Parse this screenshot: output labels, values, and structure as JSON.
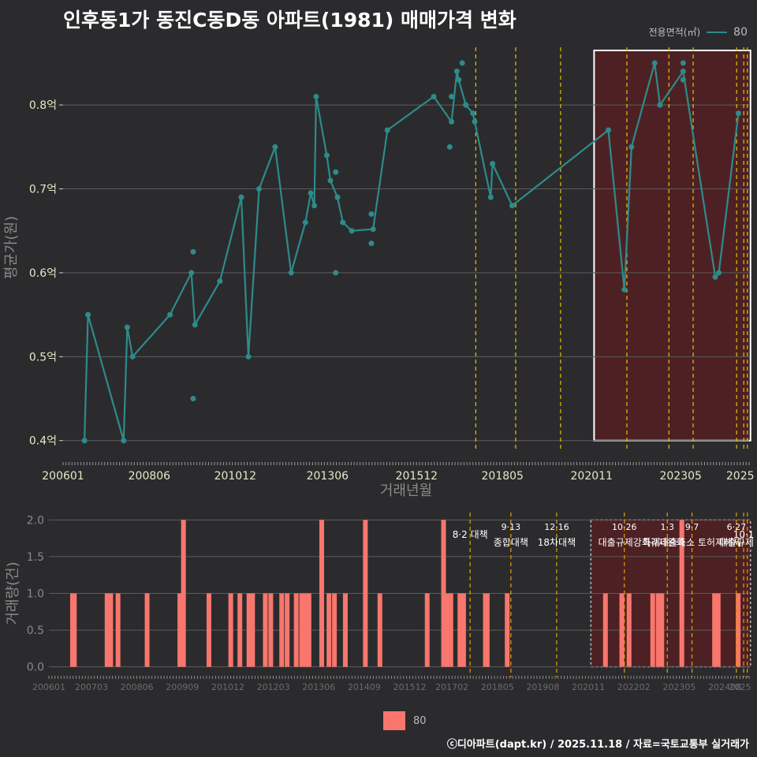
{
  "title": "인후동1가 동진C동D동 아파트(1981) 매매가격 변화",
  "credit": "ⓒ디아파트(dapt.kr) / 2025.11.18 / 자료=국토교통부 실거래가",
  "legend": {
    "title": "전용면적(㎡)",
    "series": "80"
  },
  "colors": {
    "background": "#2b2b2d",
    "line": "#2e8b8b",
    "bar": "#f8766d",
    "policy": "#e6c300",
    "highlight": "#5a1f20"
  },
  "price_chart": {
    "ylabel": "평균가(원)",
    "xlabel": "거래년월",
    "y_ticks": [
      {
        "value": 0.4,
        "label": "0.4억"
      },
      {
        "value": 0.5,
        "label": "0.5억"
      },
      {
        "value": 0.6,
        "label": "0.6억"
      },
      {
        "value": 0.7,
        "label": "0.7억"
      },
      {
        "value": 0.8,
        "label": "0.8억"
      }
    ],
    "x_ticks": [
      {
        "t": 2006.0,
        "label": "200601"
      },
      {
        "t": 2008.42,
        "label": "200806"
      },
      {
        "t": 2010.83,
        "label": "201012"
      },
      {
        "t": 2013.42,
        "label": "201306"
      },
      {
        "t": 2015.92,
        "label": "201512"
      },
      {
        "t": 2018.33,
        "label": "201805"
      },
      {
        "t": 2020.83,
        "label": "202011"
      },
      {
        "t": 2023.33,
        "label": "202305"
      },
      {
        "t": 2025.0,
        "label": "2025"
      }
    ]
  },
  "volume_chart": {
    "ylabel": "거래량(건)",
    "y_ticks": [
      {
        "value": 0,
        "label": "0.0"
      },
      {
        "value": 0.5,
        "label": "0.5"
      },
      {
        "value": 1.0,
        "label": "1.0"
      },
      {
        "value": 1.5,
        "label": "1.5"
      },
      {
        "value": 2.0,
        "label": "2.0"
      }
    ],
    "x_ticks": [
      {
        "t": 2006.0,
        "label": "200601"
      },
      {
        "t": 2007.17,
        "label": "200703"
      },
      {
        "t": 2008.42,
        "label": "200806"
      },
      {
        "t": 2009.67,
        "label": "200909"
      },
      {
        "t": 2010.92,
        "label": "201012"
      },
      {
        "t": 2012.17,
        "label": "201203"
      },
      {
        "t": 2013.42,
        "label": "201306"
      },
      {
        "t": 2014.67,
        "label": "201409"
      },
      {
        "t": 2015.92,
        "label": "201512"
      },
      {
        "t": 2017.08,
        "label": "201702"
      },
      {
        "t": 2018.33,
        "label": "201805"
      },
      {
        "t": 2019.58,
        "label": "201908"
      },
      {
        "t": 2020.83,
        "label": "202011"
      },
      {
        "t": 2022.08,
        "label": "202202"
      },
      {
        "t": 2023.33,
        "label": "202305"
      },
      {
        "t": 2024.58,
        "label": "202408"
      },
      {
        "t": 2025.0,
        "label": "2025"
      }
    ],
    "annotations": [
      {
        "t": 2017.58,
        "line1": "8·2 대책",
        "line2": ""
      },
      {
        "t": 2018.7,
        "line1": "9·13",
        "line2": "종합대책"
      },
      {
        "t": 2019.96,
        "line1": "12·16",
        "line2": "18차대책"
      },
      {
        "t": 2021.82,
        "line1": "10·26",
        "line2": "대출규제강화"
      },
      {
        "t": 2023.0,
        "line1": "1·3",
        "line2": "규제완화"
      },
      {
        "t": 2023.68,
        "line1": "9·7",
        "line2": "특례대출축소 토허제해제"
      },
      {
        "t": 2024.9,
        "line1": "6·27",
        "line2": "대출규제"
      },
      {
        "t": 2025.1,
        "line1": "10·1",
        "line2": ""
      }
    ]
  },
  "chart_data": {
    "type": "line",
    "title": "인후동1가 동진C동D동 아파트(1981) 매매가격 변화",
    "xlabel": "거래년월",
    "ylabel": "평균가(원)",
    "ylim": [
      0.4,
      0.86
    ],
    "xlim": [
      2006.0,
      2025.25
    ],
    "series": [
      {
        "name": "80",
        "x": [
          2006.6,
          2006.7,
          2007.7,
          2007.8,
          2007.95,
          2009.0,
          2009.6,
          2009.7,
          2010.4,
          2011.0,
          2011.2,
          2011.5,
          2011.95,
          2012.4,
          2012.8,
          2012.95,
          2013.05,
          2013.1,
          2013.4,
          2013.5,
          2013.7,
          2013.85,
          2014.1,
          2014.7,
          2015.1,
          2016.4,
          2016.9,
          2017.05,
          2017.1,
          2017.3,
          2017.5,
          2017.55,
          2018.0,
          2018.05,
          2018.6,
          2021.3,
          2021.75,
          2021.95,
          2022.6,
          2022.75,
          2023.4,
          2024.3,
          2024.4,
          2024.95
        ],
        "y": [
          0.4,
          0.55,
          0.4,
          0.535,
          0.5,
          0.55,
          0.6,
          0.538,
          0.59,
          0.69,
          0.5,
          0.7,
          0.75,
          0.6,
          0.66,
          0.695,
          0.68,
          0.81,
          0.74,
          0.71,
          0.69,
          0.66,
          0.65,
          0.652,
          0.77,
          0.81,
          0.78,
          0.84,
          0.83,
          0.8,
          0.79,
          0.78,
          0.69,
          0.73,
          0.68,
          0.77,
          0.58,
          0.75,
          0.85,
          0.8,
          0.84,
          0.595,
          0.6,
          0.79
        ]
      }
    ],
    "extra_points": [
      {
        "x": 2009.65,
        "y": 0.625
      },
      {
        "x": 2009.65,
        "y": 0.45
      },
      {
        "x": 2013.65,
        "y": 0.72
      },
      {
        "x": 2013.65,
        "y": 0.6
      },
      {
        "x": 2014.65,
        "y": 0.635
      },
      {
        "x": 2014.65,
        "y": 0.67
      },
      {
        "x": 2016.85,
        "y": 0.75
      },
      {
        "x": 2016.9,
        "y": 0.81
      },
      {
        "x": 2017.2,
        "y": 0.85
      },
      {
        "x": 2017.3,
        "y": 0.8
      },
      {
        "x": 2023.4,
        "y": 0.85
      },
      {
        "x": 2023.4,
        "y": 0.83
      }
    ],
    "policy_lines": [
      2017.58,
      2018.7,
      2019.96,
      2021.82,
      2023.0,
      2023.68,
      2024.9,
      2025.1,
      2025.2
    ],
    "highlight_range": [
      2020.9,
      2025.2
    ],
    "volume": {
      "type": "bar",
      "ylim": [
        0,
        2
      ],
      "x": [
        2006.65,
        2006.7,
        2007.6,
        2007.7,
        2007.9,
        2008.7,
        2009.6,
        2009.7,
        2010.4,
        2011.0,
        2011.25,
        2011.5,
        2011.6,
        2011.95,
        2012.1,
        2012.4,
        2012.55,
        2012.8,
        2012.95,
        2013.05,
        2013.15,
        2013.5,
        2013.7,
        2013.85,
        2014.15,
        2014.7,
        2015.1,
        2016.4,
        2016.85,
        2016.95,
        2017.05,
        2017.3,
        2017.4,
        2018.0,
        2018.05,
        2018.6,
        2021.3,
        2021.75,
        2021.95,
        2022.6,
        2022.75,
        2022.85,
        2023.4,
        2024.3,
        2024.4,
        2024.95
      ],
      "values": [
        1,
        1,
        1,
        1,
        1,
        1,
        1,
        2,
        1,
        1,
        1,
        1,
        1,
        1,
        1,
        1,
        1,
        1,
        1,
        1,
        1,
        2,
        1,
        1,
        1,
        2,
        1,
        1,
        2,
        1,
        1,
        1,
        1,
        1,
        1,
        1,
        1,
        1,
        1,
        1,
        1,
        1,
        2,
        1,
        1,
        1
      ]
    }
  }
}
